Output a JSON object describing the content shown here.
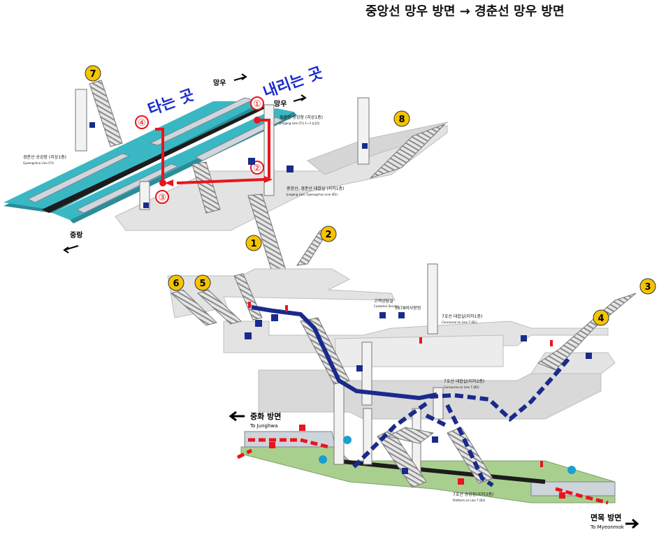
{
  "title": "중앙선 망우 방면 → 경춘선 망우 방면",
  "board_label": "타는 곳",
  "alight_label": "내리는 곳",
  "route_steps": [
    "①",
    "②",
    "③",
    "④"
  ],
  "exits": [
    "1",
    "2",
    "3",
    "4",
    "5",
    "6",
    "7",
    "8"
  ],
  "directions": {
    "mangu_top": "망우",
    "mangu_mid": "망우",
    "jungang": "중랑",
    "junghwa_ko": "중화 방면",
    "junghwa_en": "To Junghwa",
    "myeonmok_ko": "면목 방면",
    "myeonmok_en": "To Myeonmok"
  },
  "floor_labels": {
    "jungang_platform": "중앙선 승강장 (지상1층)",
    "jungang_platform_en": "Jungang Line (F1) 1~3 승강장",
    "gyeongchun_platform": "경춘선 승강장 (지상1층)",
    "gyeongchun_platform_en": "Gyeongchun Line (F1)",
    "concourse_jg": "중앙선, 경춘선 대합실 (지하1층)",
    "concourse_jg_en": "Jungang Line, Gyeongchun Line (B1)",
    "line7_concourse": "7호선 대합실(지하1층)",
    "line7_concourse_en": "Concourse on Line 7 (B1)",
    "line7_concourse2": "7호선 대합실(지하2층)",
    "line7_concourse2_en": "Concourse on Line 7 (B2)",
    "line7_platform": "7호선 승강장(지하3층)",
    "line7_platform_en": "Platform on Line 7 (B3)",
    "customer_service": "고객상담실",
    "customer_service_en": "Customer Service",
    "help_phone": "5678비사랑방"
  },
  "colors": {
    "route_red": "#e8151c",
    "line7_blue": "#1a2a8c",
    "platform_teal": "#39b8c4",
    "platform_green": "#a9cf8f",
    "exit_yellow": "#f5c400",
    "floor_gray": "#d9d9d9"
  }
}
